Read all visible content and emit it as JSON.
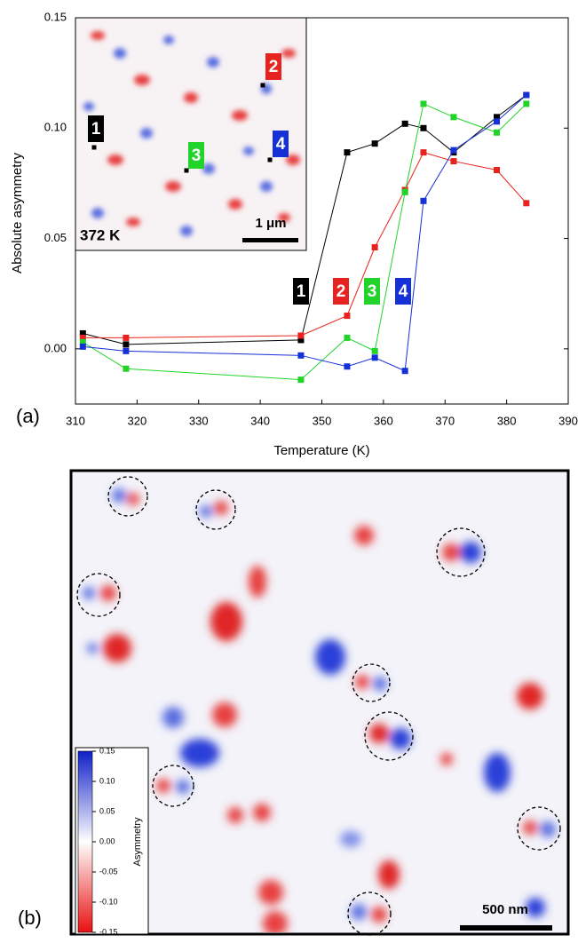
{
  "chart_data": [
    {
      "type": "line",
      "panel_label": "(a)",
      "x_label": "Temperature (K)",
      "y_label": "Absolute asymmetry",
      "x": [
        311.2,
        318.2,
        346.6,
        354.1,
        358.6,
        363.5,
        366.5,
        371.4,
        378.4,
        383.2
      ],
      "series": [
        {
          "name": "1",
          "color": "#000000",
          "values": [
            0.007,
            0.002,
            0.004,
            0.089,
            0.093,
            0.102,
            0.1,
            0.089,
            0.105,
            0.115
          ]
        },
        {
          "name": "2",
          "color": "#e8231f",
          "values": [
            0.005,
            0.005,
            0.006,
            0.015,
            0.046,
            0.072,
            0.089,
            0.085,
            0.081,
            0.066
          ]
        },
        {
          "name": "3",
          "color": "#22d42a",
          "values": [
            0.003,
            -0.009,
            -0.014,
            0.005,
            -0.001,
            0.071,
            0.111,
            0.105,
            0.098,
            0.111
          ]
        },
        {
          "name": "4",
          "color": "#1630d8",
          "values": [
            0.001,
            -0.001,
            -0.003,
            -0.008,
            -0.004,
            -0.01,
            0.067,
            0.09,
            0.103,
            0.115
          ]
        }
      ],
      "xlim": [
        310,
        390
      ],
      "xticks": [
        310,
        320,
        330,
        340,
        350,
        360,
        370,
        380,
        390
      ],
      "ylim": [
        -0.025,
        0.15
      ],
      "yticks": [
        {
          "value": 0,
          "label": "0.00"
        },
        {
          "value": 0.05,
          "label": "0.05"
        },
        {
          "value": 0.1,
          "label": "0.10"
        },
        {
          "value": 0.15,
          "label": "0.15"
        }
      ],
      "inset_label": "372 K",
      "inset_scale_bar": "1 μm"
    },
    {
      "type": "image",
      "panel_label": "(b)",
      "scale_bar": "500 nm",
      "colorbar": {
        "label": "Asymmetry",
        "lim": [
          -0.15,
          0.15
        ],
        "ticks": [
          {
            "value": 0.15,
            "label": "0.15"
          },
          {
            "value": 0.1,
            "label": "0.10"
          },
          {
            "value": 0.05,
            "label": "0.05"
          },
          {
            "value": 0,
            "label": "0.00"
          },
          {
            "value": -0.05,
            "label": "-0.05"
          },
          {
            "value": -0.1,
            "label": "-0.10"
          },
          {
            "value": -0.15,
            "label": "-0.15"
          }
        ]
      }
    }
  ]
}
